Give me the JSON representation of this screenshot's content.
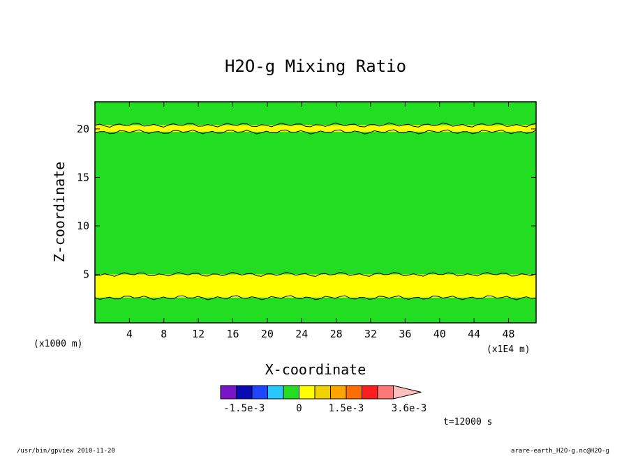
{
  "chart_data": {
    "type": "heatmap",
    "title": "H2O-g Mixing Ratio",
    "xlabel": "X-coordinate",
    "ylabel": "Z-coordinate",
    "x_unit_left": "(x1000 m)",
    "x_unit_right": "(x1E4 m)",
    "xlim": [
      0,
      51.2
    ],
    "ylim": [
      0,
      22.8
    ],
    "x_ticks": [
      4,
      8,
      12,
      16,
      20,
      24,
      28,
      32,
      36,
      40,
      44,
      48
    ],
    "y_ticks": [
      5,
      10,
      15,
      20
    ],
    "fill_levels": [
      {
        "level": "near 0",
        "color": "#22dd22",
        "z_range": [
          0.2,
          2.6
        ]
      },
      {
        "level": "1.5e-3 band",
        "color": "#ffff00",
        "z_range": [
          2.6,
          5.0
        ]
      },
      {
        "level": "near 0",
        "color": "#22dd22",
        "z_range": [
          5.0,
          19.7
        ]
      },
      {
        "level": "1.5e-3 band",
        "color": "#ffff00",
        "z_range": [
          19.7,
          20.4
        ]
      },
      {
        "level": "near 0",
        "color": "#22dd22",
        "z_range": [
          20.4,
          22.8
        ]
      }
    ],
    "colorbar": {
      "colors": [
        "#7a14c8",
        "#0a0ab4",
        "#1e46ff",
        "#28c8ff",
        "#22dd22",
        "#ffff00",
        "#f0d200",
        "#ffa500",
        "#ff6e00",
        "#ff1e1e",
        "#ff7878",
        "#ffbebe"
      ],
      "labels": [
        "-1.5e-3",
        "0",
        "1.5e-3",
        "3.6e-3"
      ]
    },
    "time_label": "t=12000 s",
    "grid": false
  },
  "footer": {
    "left": "/usr/bin/gpview  2010-11-20",
    "right": "arare-earth_H2O-g.nc@H2O-g"
  }
}
